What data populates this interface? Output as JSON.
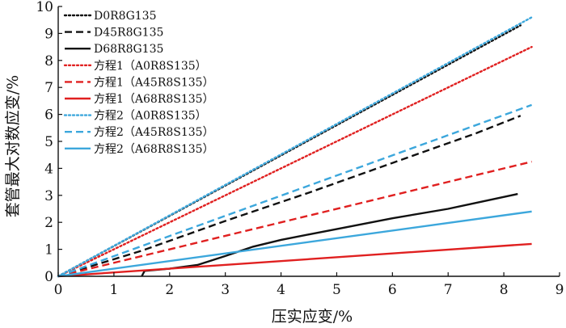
{
  "chart_data": {
    "type": "line",
    "xlabel": "压实应变/%",
    "ylabel": "套管最大对数应变/%",
    "xlim": [
      0,
      9
    ],
    "ylim": [
      0,
      10
    ],
    "xticks": [
      "0",
      "1",
      "2",
      "3",
      "4",
      "5",
      "6",
      "7",
      "8",
      "9"
    ],
    "yticks": [
      "0",
      "1",
      "2",
      "3",
      "4",
      "5",
      "6",
      "7",
      "8",
      "9",
      "10"
    ],
    "grid": false,
    "legend_position": "top-left",
    "series": [
      {
        "name": "D0R8G135",
        "color": "#111111",
        "style": "dotted",
        "points": [
          [
            0,
            0
          ],
          [
            8.3,
            9.3
          ]
        ]
      },
      {
        "name": "D45R8G135",
        "color": "#111111",
        "style": "dashed",
        "points": [
          [
            0,
            0
          ],
          [
            1.5,
            0.95
          ],
          [
            3,
            2.05
          ],
          [
            4.5,
            3.1
          ],
          [
            6,
            4.2
          ],
          [
            7.5,
            5.3
          ],
          [
            8.3,
            5.95
          ]
        ]
      },
      {
        "name": "D68R8G135",
        "color": "#111111",
        "style": "solid",
        "points": [
          [
            1.5,
            0
          ],
          [
            1.55,
            0.2
          ],
          [
            2,
            0.28
          ],
          [
            2.5,
            0.42
          ],
          [
            3,
            0.75
          ],
          [
            3.5,
            1.1
          ],
          [
            4,
            1.35
          ],
          [
            4.5,
            1.55
          ],
          [
            5,
            1.75
          ],
          [
            6,
            2.15
          ],
          [
            7,
            2.5
          ],
          [
            8.25,
            3.05
          ]
        ]
      },
      {
        "name": "方程1（A0R8S135）",
        "color": "#e02020",
        "style": "dotted",
        "points": [
          [
            0,
            0
          ],
          [
            8.5,
            8.5
          ]
        ]
      },
      {
        "name": "方程1（A45R8S135）",
        "color": "#e02020",
        "style": "dashed",
        "points": [
          [
            0,
            0
          ],
          [
            8.5,
            4.25
          ]
        ]
      },
      {
        "name": "方程1（A68R8S135）",
        "color": "#e02020",
        "style": "solid",
        "points": [
          [
            0,
            0
          ],
          [
            8.5,
            1.2
          ]
        ]
      },
      {
        "name": "方程2（A0R8S135）",
        "color": "#3ca7dc",
        "style": "dotted",
        "points": [
          [
            0,
            0
          ],
          [
            8.5,
            9.6
          ]
        ]
      },
      {
        "name": "方程2（A45R8S135）",
        "color": "#3ca7dc",
        "style": "dashed",
        "points": [
          [
            0,
            0
          ],
          [
            8.5,
            6.35
          ]
        ]
      },
      {
        "name": "方程2（A68R8S135）",
        "color": "#3ca7dc",
        "style": "solid",
        "points": [
          [
            0,
            0
          ],
          [
            8.5,
            2.4
          ]
        ]
      }
    ]
  }
}
